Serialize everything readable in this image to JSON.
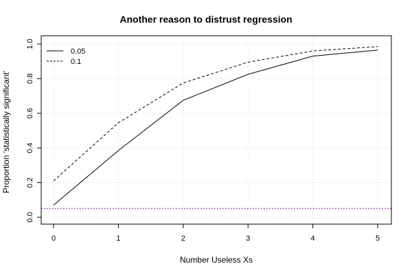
{
  "chart_data": {
    "type": "line",
    "title": "Another reason to distrust regression",
    "xlabel": "Number Useless Xs",
    "ylabel": "Proportion 'statistically significant'",
    "x": [
      0,
      1,
      2,
      3,
      4,
      5
    ],
    "xlim": [
      0,
      5
    ],
    "ylim": [
      0,
      1
    ],
    "xticks": [
      "0",
      "1",
      "2",
      "3",
      "4",
      "5"
    ],
    "yticks": [
      "0.0",
      "0.2",
      "0.4",
      "0.6",
      "0.8",
      "1.0"
    ],
    "series": [
      {
        "name": "0.05",
        "values": [
          0.07,
          0.385,
          0.675,
          0.825,
          0.93,
          0.965
        ],
        "style": "solid",
        "color": "#000000"
      },
      {
        "name": "0.1",
        "values": [
          0.21,
          0.545,
          0.775,
          0.895,
          0.96,
          0.985
        ],
        "style": "dashed",
        "color": "#000000"
      }
    ],
    "reference_line": {
      "y": 0.05,
      "style": "dotted",
      "color": "#8b2fc9"
    },
    "grid": true,
    "legend_position": "top-left"
  }
}
